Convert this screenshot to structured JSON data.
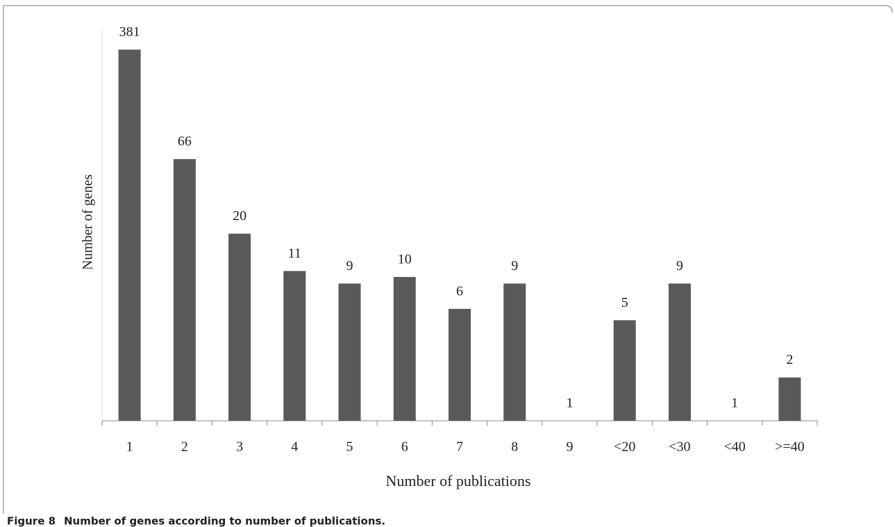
{
  "chart_data": {
    "type": "bar",
    "y_label": "Number of genes",
    "x_label": "Number of publications",
    "categories": [
      "1",
      "2",
      "3",
      "4",
      "5",
      "6",
      "7",
      "8",
      "9",
      "<20",
      "<30",
      "<40",
      ">=40"
    ],
    "values": [
      381,
      66,
      20,
      11,
      9,
      10,
      6,
      9,
      1,
      5,
      9,
      1,
      2
    ],
    "color": "#595959",
    "log_scale": true,
    "ylim": [
      1,
      500
    ],
    "grid": false
  },
  "caption": {
    "label": "Figure 8",
    "text": "Number of genes according to number of publications."
  }
}
